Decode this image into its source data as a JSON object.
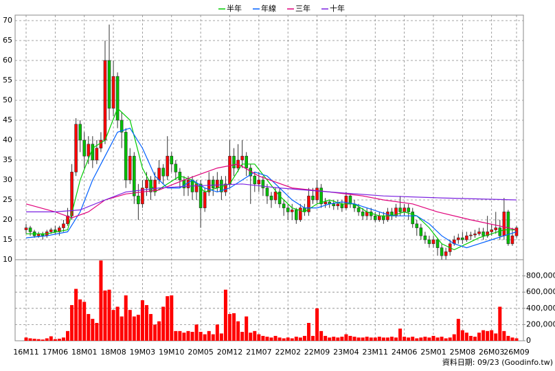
{
  "chart_data": {
    "type": "candlestick",
    "categories": [
      "16M11",
      null,
      null,
      null,
      null,
      null,
      null,
      "17M06",
      null,
      null,
      null,
      null,
      null,
      null,
      "18M01",
      null,
      null,
      null,
      null,
      null,
      null,
      "18M08",
      null,
      null,
      null,
      null,
      null,
      null,
      "19M03",
      null,
      null,
      null,
      null,
      null,
      null,
      "19M10",
      null,
      null,
      null,
      null,
      null,
      null,
      "20M05",
      null,
      null,
      null,
      null,
      null,
      null,
      "20M12",
      null,
      null,
      null,
      null,
      null,
      null,
      "21M07",
      null,
      null,
      null,
      null,
      null,
      null,
      "22M02",
      null,
      null,
      null,
      null,
      null,
      null,
      "22M09",
      null,
      null,
      null,
      null,
      null,
      null,
      "23M04",
      null,
      null,
      null,
      null,
      null,
      null,
      "23M11",
      null,
      null,
      null,
      null,
      null,
      null,
      "24M06",
      null,
      null,
      null,
      null,
      null,
      null,
      "25M01",
      null,
      null,
      null,
      null,
      null,
      null,
      "25M08",
      null,
      null,
      null,
      null,
      null,
      null,
      "26M03",
      null,
      null,
      null,
      null,
      null,
      "26M09"
    ],
    "ohlc": [
      [
        17.5,
        19,
        16.5,
        18
      ],
      [
        18,
        18.5,
        16,
        17
      ],
      [
        17,
        17.5,
        15.5,
        16
      ],
      [
        16,
        17,
        15.5,
        16.5
      ],
      [
        16.5,
        17,
        15,
        16
      ],
      [
        16,
        17.5,
        15.5,
        17
      ],
      [
        17,
        18,
        16.5,
        17.5
      ],
      [
        17.5,
        18.5,
        16.5,
        17
      ],
      [
        17,
        18.5,
        16,
        18
      ],
      [
        18,
        20,
        17,
        19
      ],
      [
        19,
        23,
        18.5,
        21
      ],
      [
        21,
        34,
        20,
        32
      ],
      [
        32,
        45.5,
        31,
        44
      ],
      [
        44,
        45,
        37,
        40
      ],
      [
        40,
        42,
        33,
        36
      ],
      [
        36,
        41,
        34,
        39
      ],
      [
        39,
        41,
        33,
        35
      ],
      [
        35,
        40,
        34,
        38
      ],
      [
        38,
        42,
        37,
        40
      ],
      [
        40,
        65,
        39,
        60
      ],
      [
        60,
        69,
        45,
        48
      ],
      [
        48,
        60,
        46,
        56
      ],
      [
        56,
        57,
        43,
        45
      ],
      [
        45,
        47,
        38,
        42
      ],
      [
        42,
        43,
        28,
        30
      ],
      [
        30,
        38,
        29,
        36
      ],
      [
        36,
        37,
        24,
        26
      ],
      [
        26,
        29,
        20,
        24
      ],
      [
        24,
        30,
        23,
        28
      ],
      [
        28,
        32,
        26,
        30
      ],
      [
        30,
        31,
        25,
        27
      ],
      [
        27,
        32,
        26,
        30
      ],
      [
        30,
        35,
        29,
        33
      ],
      [
        33,
        34,
        29,
        31
      ],
      [
        31,
        41,
        30,
        36
      ],
      [
        36,
        37,
        32,
        34
      ],
      [
        34,
        35,
        30,
        32
      ],
      [
        32,
        33,
        28,
        30
      ],
      [
        30,
        31,
        26,
        28
      ],
      [
        28,
        31,
        26,
        30
      ],
      [
        30,
        31,
        25,
        27
      ],
      [
        27,
        30,
        25,
        29
      ],
      [
        29,
        30,
        18,
        23
      ],
      [
        23,
        28,
        22,
        27
      ],
      [
        27,
        32,
        26,
        30
      ],
      [
        30,
        31,
        26,
        28
      ],
      [
        28,
        32,
        27,
        30
      ],
      [
        30,
        31,
        25,
        27
      ],
      [
        27,
        31,
        26,
        29
      ],
      [
        29,
        40,
        28,
        36
      ],
      [
        36,
        38,
        31,
        33
      ],
      [
        33,
        39,
        32,
        35
      ],
      [
        35,
        40,
        33,
        36
      ],
      [
        36,
        37,
        31,
        33
      ],
      [
        33,
        34,
        24,
        31
      ],
      [
        31,
        32,
        27,
        29
      ],
      [
        29,
        32,
        27,
        30
      ],
      [
        30,
        31,
        26,
        28
      ],
      [
        28,
        29,
        24,
        26
      ],
      [
        26,
        27,
        23,
        25
      ],
      [
        25,
        28,
        24,
        27
      ],
      [
        27,
        28,
        23,
        24
      ],
      [
        24,
        25,
        21,
        23
      ],
      [
        23,
        24,
        20,
        22
      ],
      [
        22,
        24,
        20,
        22.5
      ],
      [
        22.5,
        23,
        19,
        20
      ],
      [
        20,
        24,
        19.5,
        23
      ],
      [
        23,
        24,
        21,
        22
      ],
      [
        22,
        28,
        21,
        26
      ],
      [
        26,
        28,
        24,
        25
      ],
      [
        25,
        30,
        24,
        28
      ],
      [
        28,
        29,
        23,
        24
      ],
      [
        24,
        25.5,
        23,
        24.5
      ],
      [
        24.5,
        25,
        23,
        24
      ],
      [
        24,
        25,
        22.5,
        23.5
      ],
      [
        23.5,
        25,
        22.5,
        24
      ],
      [
        24,
        25,
        22,
        23
      ],
      [
        23,
        27,
        22.5,
        26
      ],
      [
        26,
        26.5,
        23,
        24
      ],
      [
        24,
        25,
        22,
        23
      ],
      [
        23,
        24,
        21,
        22
      ],
      [
        22,
        23,
        20,
        21
      ],
      [
        21,
        23,
        20,
        22
      ],
      [
        22,
        23,
        20,
        21
      ],
      [
        21,
        22,
        19.5,
        20
      ],
      [
        20,
        22,
        19.5,
        21
      ],
      [
        21,
        22,
        19,
        20
      ],
      [
        20,
        23,
        19.5,
        22
      ],
      [
        22,
        23,
        20,
        21
      ],
      [
        21,
        24,
        20.5,
        23
      ],
      [
        23,
        26,
        21,
        22
      ],
      [
        22,
        24,
        21,
        23
      ],
      [
        23,
        24,
        20,
        22
      ],
      [
        22,
        23,
        18,
        19
      ],
      [
        19,
        20,
        16,
        18
      ],
      [
        18,
        19,
        15,
        16
      ],
      [
        16,
        17,
        14,
        15
      ],
      [
        15,
        16,
        13,
        14
      ],
      [
        14,
        16,
        13,
        15
      ],
      [
        15,
        15.5,
        11,
        13
      ],
      [
        13,
        14,
        10,
        11
      ],
      [
        11,
        13,
        10,
        12
      ],
      [
        12,
        15,
        11,
        14
      ],
      [
        14,
        16,
        13.5,
        15
      ],
      [
        15,
        16.5,
        14,
        15.5
      ],
      [
        15.5,
        17,
        14,
        15
      ],
      [
        15,
        17,
        14.5,
        16
      ],
      [
        16,
        17,
        15,
        16.2
      ],
      [
        16.2,
        17.5,
        15.5,
        16.5
      ],
      [
        16.5,
        18,
        16,
        17
      ],
      [
        17,
        18,
        15,
        16
      ],
      [
        16,
        21,
        15.5,
        17
      ],
      [
        17,
        19,
        16,
        17.5
      ],
      [
        17.5,
        22,
        16.5,
        18
      ],
      [
        18,
        20,
        15,
        16
      ],
      [
        16,
        25.5,
        15,
        22
      ],
      [
        22,
        22.5,
        13.5,
        14
      ],
      [
        14,
        18,
        13.5,
        16
      ],
      [
        16,
        18.5,
        15.5,
        18
      ]
    ],
    "up_color": "#ff0000",
    "down_color": "#00c000",
    "ylim": [
      10,
      70
    ],
    "yticks": [
      10,
      15,
      20,
      25,
      30,
      35,
      40,
      45,
      50,
      55,
      60,
      65,
      70
    ],
    "grid": true,
    "series": [
      {
        "name": "半年",
        "color": "#00cc00",
        "x": [
          0,
          5,
          10,
          13,
          16,
          19,
          22,
          25,
          28,
          31,
          34,
          37,
          40,
          43,
          46,
          49,
          52,
          55,
          58,
          61,
          64,
          67,
          70,
          73,
          76,
          79,
          82,
          85,
          88,
          91,
          94,
          97,
          100,
          103,
          106,
          109,
          112,
          115,
          118
        ],
        "values": [
          16.5,
          16.5,
          17.5,
          30,
          38,
          40,
          48,
          45,
          33,
          27,
          29,
          31,
          30,
          27,
          28,
          29,
          34,
          34,
          30,
          26,
          23,
          22,
          24,
          25,
          24,
          24,
          22,
          21,
          21,
          22,
          21,
          18,
          14,
          12.5,
          14,
          15.5,
          16.5,
          17.5,
          17.5
        ]
      },
      {
        "name": "年線",
        "color": "#0060ff",
        "x": [
          0,
          5,
          10,
          13,
          16,
          19,
          22,
          25,
          28,
          31,
          34,
          37,
          40,
          43,
          46,
          49,
          52,
          55,
          58,
          61,
          64,
          67,
          70,
          73,
          76,
          79,
          82,
          85,
          88,
          91,
          94,
          97,
          100,
          103,
          106,
          109,
          112,
          115,
          118
        ],
        "values": [
          15.5,
          16,
          17,
          22,
          30,
          36,
          42,
          43,
          38,
          31,
          28,
          28,
          30,
          28,
          27,
          28,
          30,
          32,
          31,
          28,
          25,
          23,
          23,
          24,
          24.5,
          24,
          23,
          22,
          21,
          21,
          21,
          19,
          16,
          14,
          13,
          14,
          15,
          16,
          17
        ]
      },
      {
        "name": "三年",
        "color": "#e0007a",
        "x": [
          0,
          7,
          11,
          15,
          19,
          24,
          32,
          38,
          46,
          51,
          56,
          64,
          73,
          81,
          86,
          93,
          99,
          107,
          116,
          118
        ],
        "values": [
          24,
          22,
          20.5,
          22,
          25,
          26.5,
          27.5,
          30,
          33,
          34,
          31,
          28,
          27,
          26,
          25,
          24,
          22,
          20,
          18,
          17.5
        ]
      },
      {
        "name": "十年",
        "color": "#7a20e0",
        "x": [
          0,
          7,
          13,
          19,
          24,
          32,
          40,
          52,
          61,
          73,
          86,
          100,
          118
        ],
        "values": [
          22,
          22,
          22.5,
          25,
          27,
          28,
          28.5,
          29,
          28,
          27,
          26,
          25.5,
          25
        ]
      }
    ],
    "volume": {
      "color": "#ff0000",
      "ylim": [
        0,
        1000000
      ],
      "yticks": [
        0,
        {
          "value": 200000,
          "label": "200,000"
        },
        {
          "value": 400000,
          "label": "400,000"
        },
        {
          "value": 600000,
          "label": "600,000"
        },
        {
          "value": 800000,
          "label": "800,000"
        }
      ],
      "values": [
        40000,
        30000,
        25000,
        20000,
        15000,
        30000,
        55000,
        20000,
        25000,
        40000,
        120000,
        440000,
        640000,
        510000,
        480000,
        330000,
        270000,
        220000,
        990000,
        620000,
        630000,
        380000,
        420000,
        300000,
        560000,
        380000,
        300000,
        320000,
        500000,
        440000,
        330000,
        200000,
        240000,
        420000,
        550000,
        560000,
        120000,
        120000,
        100000,
        120000,
        110000,
        200000,
        110000,
        80000,
        120000,
        80000,
        200000,
        90000,
        630000,
        330000,
        340000,
        240000,
        110000,
        300000,
        100000,
        120000,
        80000,
        60000,
        50000,
        40000,
        60000,
        40000,
        30000,
        40000,
        30000,
        50000,
        40000,
        60000,
        220000,
        60000,
        400000,
        120000,
        60000,
        40000,
        50000,
        40000,
        50000,
        80000,
        60000,
        50000,
        40000,
        40000,
        50000,
        40000,
        40000,
        50000,
        40000,
        40000,
        50000,
        40000,
        150000,
        50000,
        40000,
        50000,
        30000,
        40000,
        50000,
        40000,
        60000,
        40000,
        50000,
        30000,
        40000,
        80000,
        270000,
        130000,
        100000,
        60000,
        50000,
        100000,
        130000,
        120000,
        130000,
        90000,
        420000,
        120000,
        60000,
        40000,
        30000
      ]
    },
    "footer": "資料日期: 09/23 (Goodinfo.tw)"
  }
}
